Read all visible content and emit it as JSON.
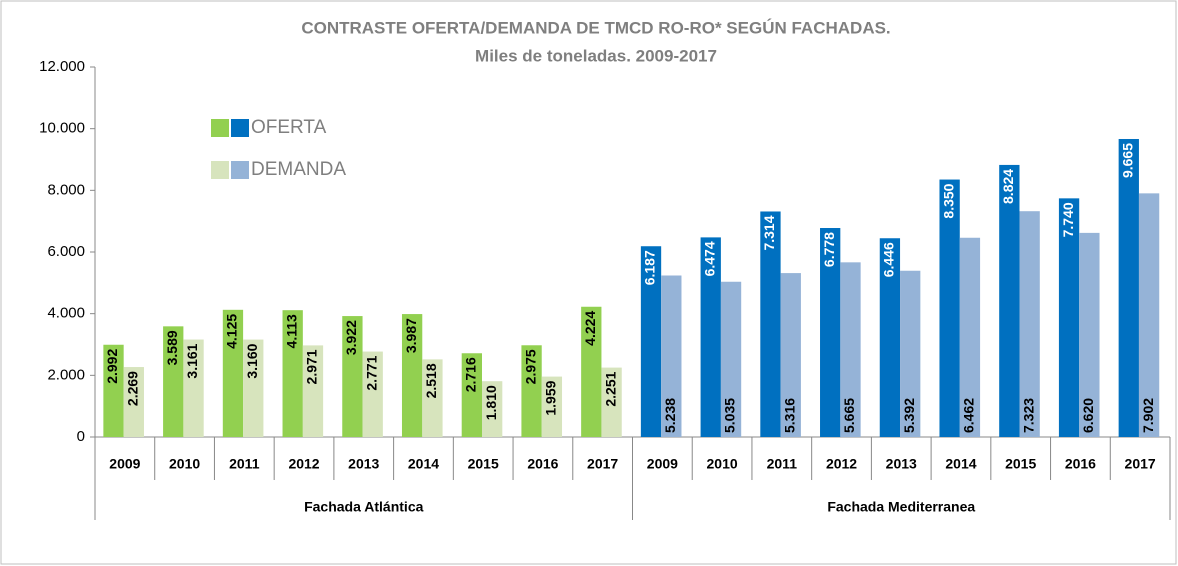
{
  "chart_data": {
    "type": "bar",
    "title": "CONTRASTE OFERTA/DEMANDA DE TMCD RO-RO* SEGÚN FACHADAS.",
    "subtitle": "Miles de toneladas. 2009-2017",
    "groups": [
      {
        "name": "Fachada Atlántica",
        "categories": [
          "2009",
          "2010",
          "2011",
          "2012",
          "2013",
          "2014",
          "2015",
          "2016",
          "2017"
        ]
      },
      {
        "name": "Fachada Mediterranea",
        "categories": [
          "2009",
          "2010",
          "2011",
          "2012",
          "2013",
          "2014",
          "2015",
          "2016",
          "2017"
        ]
      }
    ],
    "series": [
      {
        "name": "OFERTA",
        "colors": [
          "#92d050",
          "#0070c0"
        ],
        "values": [
          2992,
          3589,
          4125,
          4113,
          3922,
          3987,
          2716,
          2975,
          4224,
          6187,
          6474,
          7314,
          6778,
          6446,
          8350,
          8824,
          7740,
          9665
        ],
        "value_labels": [
          "2.992",
          "3.589",
          "4.125",
          "4.113",
          "3.922",
          "3.987",
          "2.716",
          "2.975",
          "4.224",
          "6.187",
          "6.474",
          "7.314",
          "6.778",
          "6.446",
          "8.350",
          "8.824",
          "7.740",
          "9.665"
        ]
      },
      {
        "name": "DEMANDA",
        "colors": [
          "#d7e4bd",
          "#95b3d7"
        ],
        "values": [
          2269,
          3161,
          3160,
          2971,
          2771,
          2518,
          1810,
          1959,
          2251,
          5238,
          5035,
          5316,
          5665,
          5392,
          6462,
          7323,
          6620,
          7902
        ],
        "value_labels": [
          "2.269",
          "3.161",
          "3.160",
          "2.971",
          "2.771",
          "2.518",
          "1.810",
          "1.959",
          "2.251",
          "5.238",
          "5.035",
          "5.316",
          "5.665",
          "5.392",
          "6.462",
          "7.323",
          "6.620",
          "7.902"
        ]
      }
    ],
    "ylim": [
      0,
      12000
    ],
    "yticks": [
      0,
      {
        "value": 2000,
        "label": "2.000"
      },
      {
        "value": 4000,
        "label": "4.000"
      },
      {
        "value": 6000,
        "label": "6.000"
      },
      {
        "value": 8000,
        "label": "8.000"
      },
      {
        "value": 10000,
        "label": "10.000"
      },
      {
        "value": 12000,
        "label": "12.000"
      }
    ]
  }
}
